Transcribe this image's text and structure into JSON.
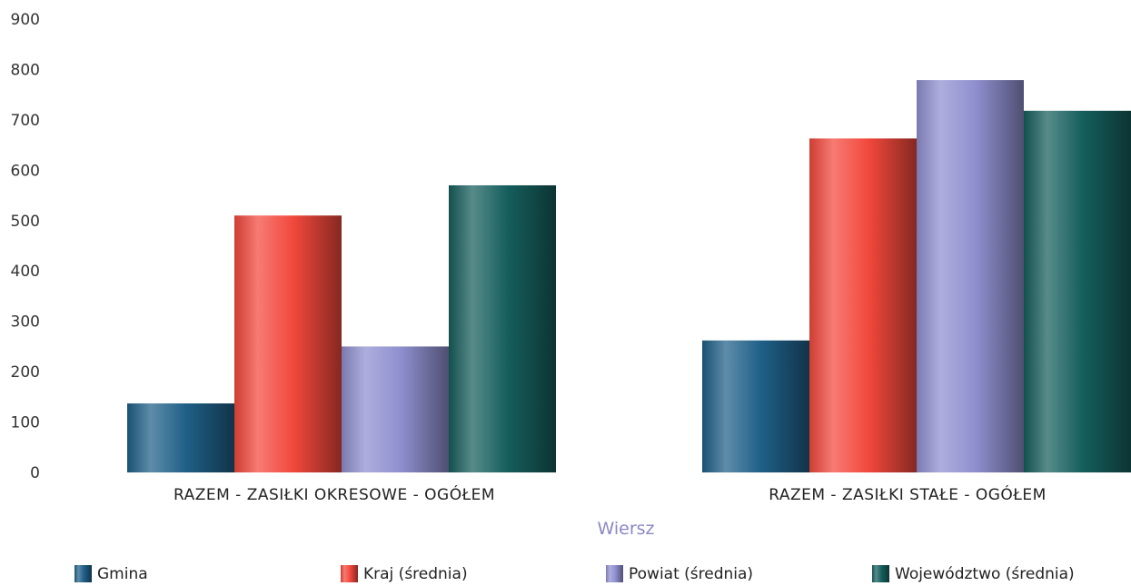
{
  "chart_data": {
    "type": "bar",
    "categories": [
      "RAZEM -  ZASIŁKI OKRESOWE - OGÓŁEM",
      "RAZEM -  ZASIŁKI STAŁE - OGÓŁEM"
    ],
    "series": [
      {
        "name": "Gmina",
        "values": [
          137,
          262
        ],
        "color": "#1f5f87"
      },
      {
        "name": "Kraj (średnia)",
        "values": [
          510,
          663
        ],
        "color": "#f2483c"
      },
      {
        "name": "Powiat (średnia)",
        "values": [
          250,
          779
        ],
        "color": "#8f8fd0"
      },
      {
        "name": "Województwo (średnia)",
        "values": [
          570,
          718
        ],
        "color": "#155e5c"
      }
    ],
    "yticks": [
      "0",
      "100",
      "200",
      "300",
      "400",
      "500",
      "600",
      "700",
      "800",
      "900"
    ],
    "ylim": [
      0,
      900
    ],
    "title": "",
    "xlabel": "Wiersz",
    "ylabel": "",
    "grid": false,
    "legend": "bottom"
  }
}
